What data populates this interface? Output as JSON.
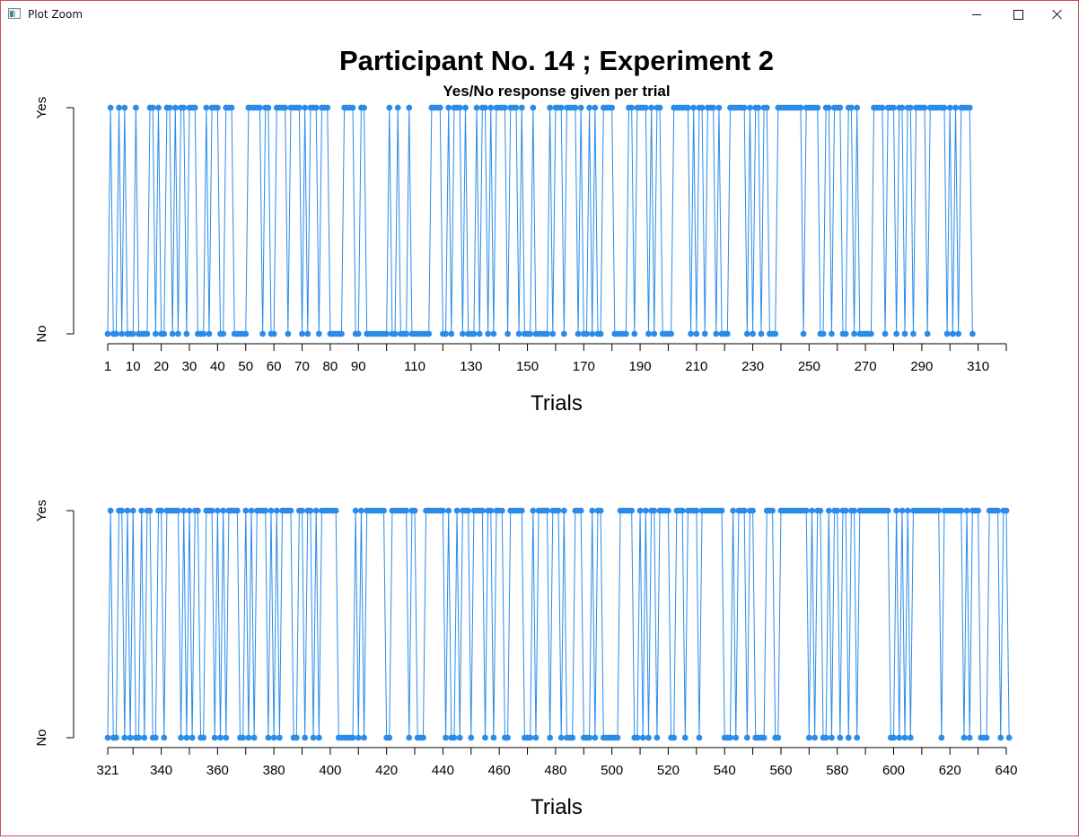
{
  "window": {
    "title": "Plot Zoom",
    "icon": "plot-window-icon",
    "controls": [
      "minimize-icon",
      "maximize-icon",
      "close-icon"
    ]
  },
  "plot": {
    "title": "Participant No. 14 ; Experiment 2",
    "subtitle": "Yes/No response given per trial",
    "color": "#2b8ce8",
    "background": "#ffffff"
  },
  "chart_data": [
    {
      "type": "line",
      "markers": "filled-circle",
      "title": "Participant No. 14 ; Experiment 2",
      "subtitle": "Yes/No response given per trial",
      "xlabel": "Trials",
      "ylabel": "",
      "y_tick_labels": [
        "No",
        "Yes"
      ],
      "x_tick_labels": [
        "1",
        "10",
        "20",
        "30",
        "40",
        "50",
        "60",
        "70",
        "80",
        "90",
        "110",
        "130",
        "150",
        "170",
        "190",
        "210",
        "230",
        "250",
        "270",
        "290",
        "310"
      ],
      "xlim": [
        1,
        320
      ],
      "ylim": [
        0,
        1
      ],
      "series": [
        {
          "x_start": 1,
          "values": [
            0,
            1,
            0,
            0,
            1,
            0,
            1,
            0,
            0,
            0,
            1,
            0,
            0,
            0,
            0,
            1,
            1,
            0,
            1,
            0,
            0,
            1,
            1,
            0,
            1,
            0,
            1,
            1,
            0,
            1,
            1,
            1,
            0,
            0,
            0,
            1,
            0,
            1,
            1,
            1,
            0,
            0,
            1,
            1,
            1,
            0,
            0,
            0,
            0,
            0,
            1,
            1,
            1,
            1,
            1,
            0,
            1,
            1,
            0,
            0,
            1,
            1,
            1,
            1,
            0,
            1,
            1,
            1,
            1,
            0,
            1,
            0,
            1,
            1,
            1,
            0,
            1,
            1,
            1,
            0,
            0,
            0,
            0,
            0,
            1,
            1,
            1,
            1,
            0,
            0,
            1,
            1,
            0,
            0,
            0,
            0,
            0,
            0,
            0,
            0,
            1,
            0,
            0,
            1,
            0,
            0,
            0,
            1,
            0,
            0,
            0,
            0,
            0,
            0,
            0,
            1,
            1,
            1,
            1,
            0,
            0,
            1,
            0,
            1,
            1,
            1,
            0,
            1,
            0,
            0,
            0,
            1,
            0,
            1,
            1,
            0,
            1,
            0,
            1,
            1,
            1,
            1,
            0,
            1,
            1,
            1,
            0,
            1,
            0,
            0,
            0,
            1,
            0,
            0,
            0,
            0,
            0,
            1,
            0,
            1,
            1,
            1,
            0,
            1,
            1,
            1,
            1,
            0,
            1,
            0,
            0,
            1,
            0,
            1,
            0,
            0,
            1,
            1,
            1,
            1,
            0,
            0,
            0,
            0,
            0,
            1,
            1,
            0,
            1,
            1,
            1,
            1,
            0,
            1,
            0,
            1,
            1,
            0,
            0,
            0,
            0,
            1,
            1,
            1,
            1,
            1,
            1,
            0,
            1,
            0,
            1,
            1,
            0,
            1,
            1,
            1,
            0,
            1,
            0,
            0,
            0,
            1,
            1,
            1,
            1,
            1,
            1,
            0,
            1,
            0,
            1,
            1,
            0,
            1,
            1,
            0,
            0,
            0,
            1,
            1,
            1,
            1,
            1,
            1,
            1,
            1,
            1,
            0,
            1,
            1,
            1,
            1,
            1,
            0,
            0,
            1,
            1,
            0,
            1,
            1,
            1,
            0,
            0,
            1,
            1,
            0,
            1,
            0,
            0,
            0,
            0,
            0,
            1,
            1,
            1,
            1,
            0,
            1,
            1,
            1,
            0,
            1,
            1,
            0,
            1,
            1,
            0,
            1,
            1,
            1,
            1,
            0,
            1,
            1,
            1,
            1,
            1,
            1,
            0,
            1,
            0,
            1,
            0,
            1,
            1,
            1,
            1,
            0
          ]
        }
      ]
    },
    {
      "type": "line",
      "markers": "filled-circle",
      "xlabel": "Trials",
      "ylabel": "",
      "y_tick_labels": [
        "No",
        "Yes"
      ],
      "x_tick_labels": [
        "321",
        "340",
        "360",
        "380",
        "400",
        "420",
        "440",
        "460",
        "480",
        "500",
        "520",
        "540",
        "560",
        "580",
        "600",
        "620",
        "640"
      ],
      "xlim": [
        321,
        640
      ],
      "ylim": [
        0,
        1
      ],
      "series": [
        {
          "x_start": 321,
          "values": [
            0,
            1,
            0,
            0,
            1,
            1,
            0,
            1,
            0,
            1,
            0,
            0,
            1,
            0,
            1,
            1,
            0,
            0,
            1,
            1,
            0,
            1,
            1,
            1,
            1,
            1,
            0,
            1,
            0,
            1,
            0,
            1,
            1,
            0,
            0,
            1,
            1,
            1,
            0,
            1,
            0,
            1,
            0,
            1,
            1,
            1,
            1,
            0,
            0,
            1,
            0,
            1,
            0,
            1,
            1,
            1,
            1,
            0,
            1,
            0,
            1,
            0,
            1,
            1,
            1,
            1,
            0,
            0,
            1,
            1,
            0,
            1,
            1,
            0,
            1,
            0,
            1,
            1,
            1,
            1,
            1,
            1,
            0,
            0,
            0,
            0,
            0,
            0,
            1,
            0,
            1,
            0,
            1,
            1,
            1,
            1,
            1,
            1,
            1,
            0,
            0,
            1,
            1,
            1,
            1,
            1,
            1,
            0,
            1,
            1,
            0,
            0,
            0,
            1,
            1,
            1,
            1,
            1,
            1,
            1,
            0,
            1,
            0,
            0,
            1,
            0,
            1,
            1,
            1,
            0,
            1,
            1,
            1,
            1,
            0,
            1,
            1,
            0,
            1,
            1,
            1,
            0,
            0,
            1,
            1,
            1,
            1,
            1,
            0,
            0,
            0,
            1,
            0,
            1,
            1,
            1,
            1,
            0,
            1,
            1,
            1,
            0,
            1,
            0,
            0,
            0,
            1,
            1,
            1,
            0,
            0,
            0,
            1,
            0,
            1,
            1,
            0,
            0,
            0,
            0,
            0,
            0,
            1,
            1,
            1,
            1,
            1,
            0,
            0,
            1,
            0,
            1,
            0,
            1,
            1,
            0,
            1,
            1,
            1,
            1,
            0,
            0,
            1,
            1,
            1,
            0,
            1,
            1,
            1,
            1,
            0,
            1,
            1,
            1,
            1,
            1,
            1,
            1,
            1,
            0,
            0,
            0,
            1,
            0,
            1,
            1,
            1,
            0,
            1,
            1,
            0,
            0,
            0,
            0,
            1,
            1,
            1,
            0,
            0,
            1,
            1,
            1,
            1,
            1,
            1,
            1,
            1,
            1,
            1,
            0,
            1,
            0,
            1,
            1,
            0,
            0,
            1,
            0,
            1,
            1,
            0,
            1,
            1,
            0,
            1,
            1,
            0,
            1,
            1,
            1,
            1,
            1,
            1,
            1,
            1,
            1,
            1,
            1,
            0,
            0,
            1,
            0,
            1,
            0,
            1,
            0,
            1,
            1,
            1,
            1,
            1,
            1,
            1,
            1,
            1,
            1,
            0,
            1,
            1,
            1,
            1,
            1,
            1,
            1,
            0,
            1,
            0,
            1,
            1,
            1,
            0,
            0,
            0,
            1,
            1,
            1,
            1,
            0,
            1,
            1,
            0
          ]
        }
      ]
    }
  ]
}
